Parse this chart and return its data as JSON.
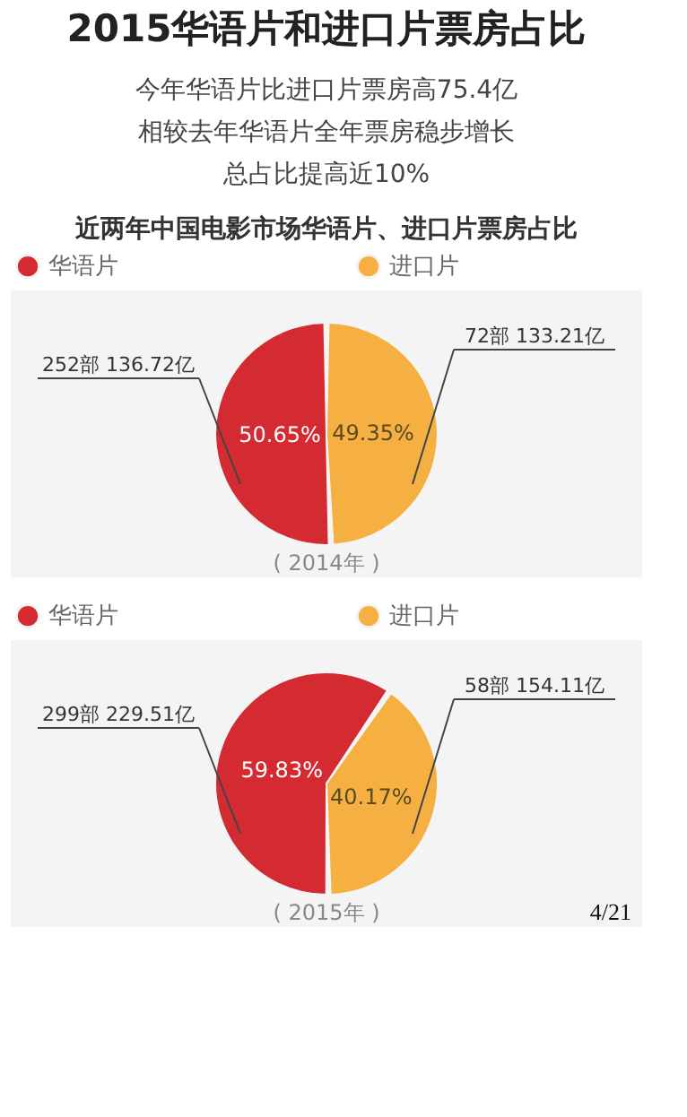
{
  "chart_data": [
    {
      "type": "other",
      "title": "2015华语片和进口片票房占比",
      "annotations": [
        "今年华语片比进口片票房高75.4亿",
        "相较去年华语片全年票房稳步增长",
        "总占比提高近10%"
      ]
    },
    {
      "type": "pie",
      "title": "近两年中国电影市场华语片、进口片票房占比",
      "categories": [
        "华语片",
        "进口片"
      ],
      "values": [
        50.65,
        49.35
      ],
      "colors": [
        "#d42a32",
        "#f6b042"
      ],
      "value_labels": [
        "50.65%",
        "49.35%"
      ],
      "legend": "top",
      "xlabel": "( 2014年 )",
      "annotations": [
        "252部   136.72亿",
        "72部   133.21亿"
      ]
    },
    {
      "type": "pie",
      "categories": [
        "华语片",
        "进口片"
      ],
      "values": [
        59.83,
        40.17
      ],
      "colors": [
        "#d42a32",
        "#f6b042"
      ],
      "value_labels": [
        "59.83%",
        "40.17%"
      ],
      "legend": "top",
      "xlabel": "( 2015年 )",
      "annotations": [
        "299部   229.51亿",
        "58部   154.11亿",
        "4/21"
      ]
    }
  ]
}
